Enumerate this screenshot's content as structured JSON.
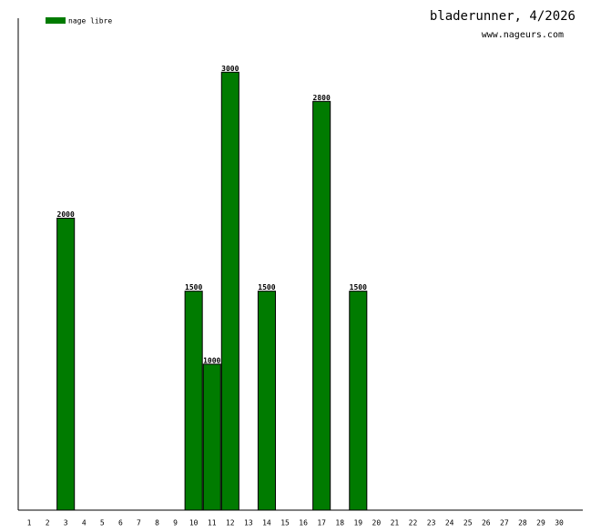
{
  "chart_data": {
    "type": "bar",
    "title": "bladerunner, 4/2026",
    "subtitle": "www.nageurs.com",
    "categories": [
      "1",
      "2",
      "3",
      "4",
      "5",
      "6",
      "7",
      "8",
      "9",
      "10",
      "11",
      "12",
      "13",
      "14",
      "15",
      "16",
      "17",
      "18",
      "19",
      "20",
      "21",
      "22",
      "23",
      "24",
      "25",
      "26",
      "27",
      "28",
      "29",
      "30"
    ],
    "series": [
      {
        "name": "nage libre",
        "color": "#007b00",
        "values": [
          null,
          null,
          2000,
          null,
          null,
          null,
          null,
          null,
          null,
          1500,
          1000,
          3000,
          null,
          1500,
          null,
          null,
          2800,
          null,
          1500,
          null,
          null,
          null,
          null,
          null,
          null,
          null,
          null,
          null,
          null,
          null
        ]
      }
    ],
    "ylim": [
      0,
      3370
    ]
  }
}
